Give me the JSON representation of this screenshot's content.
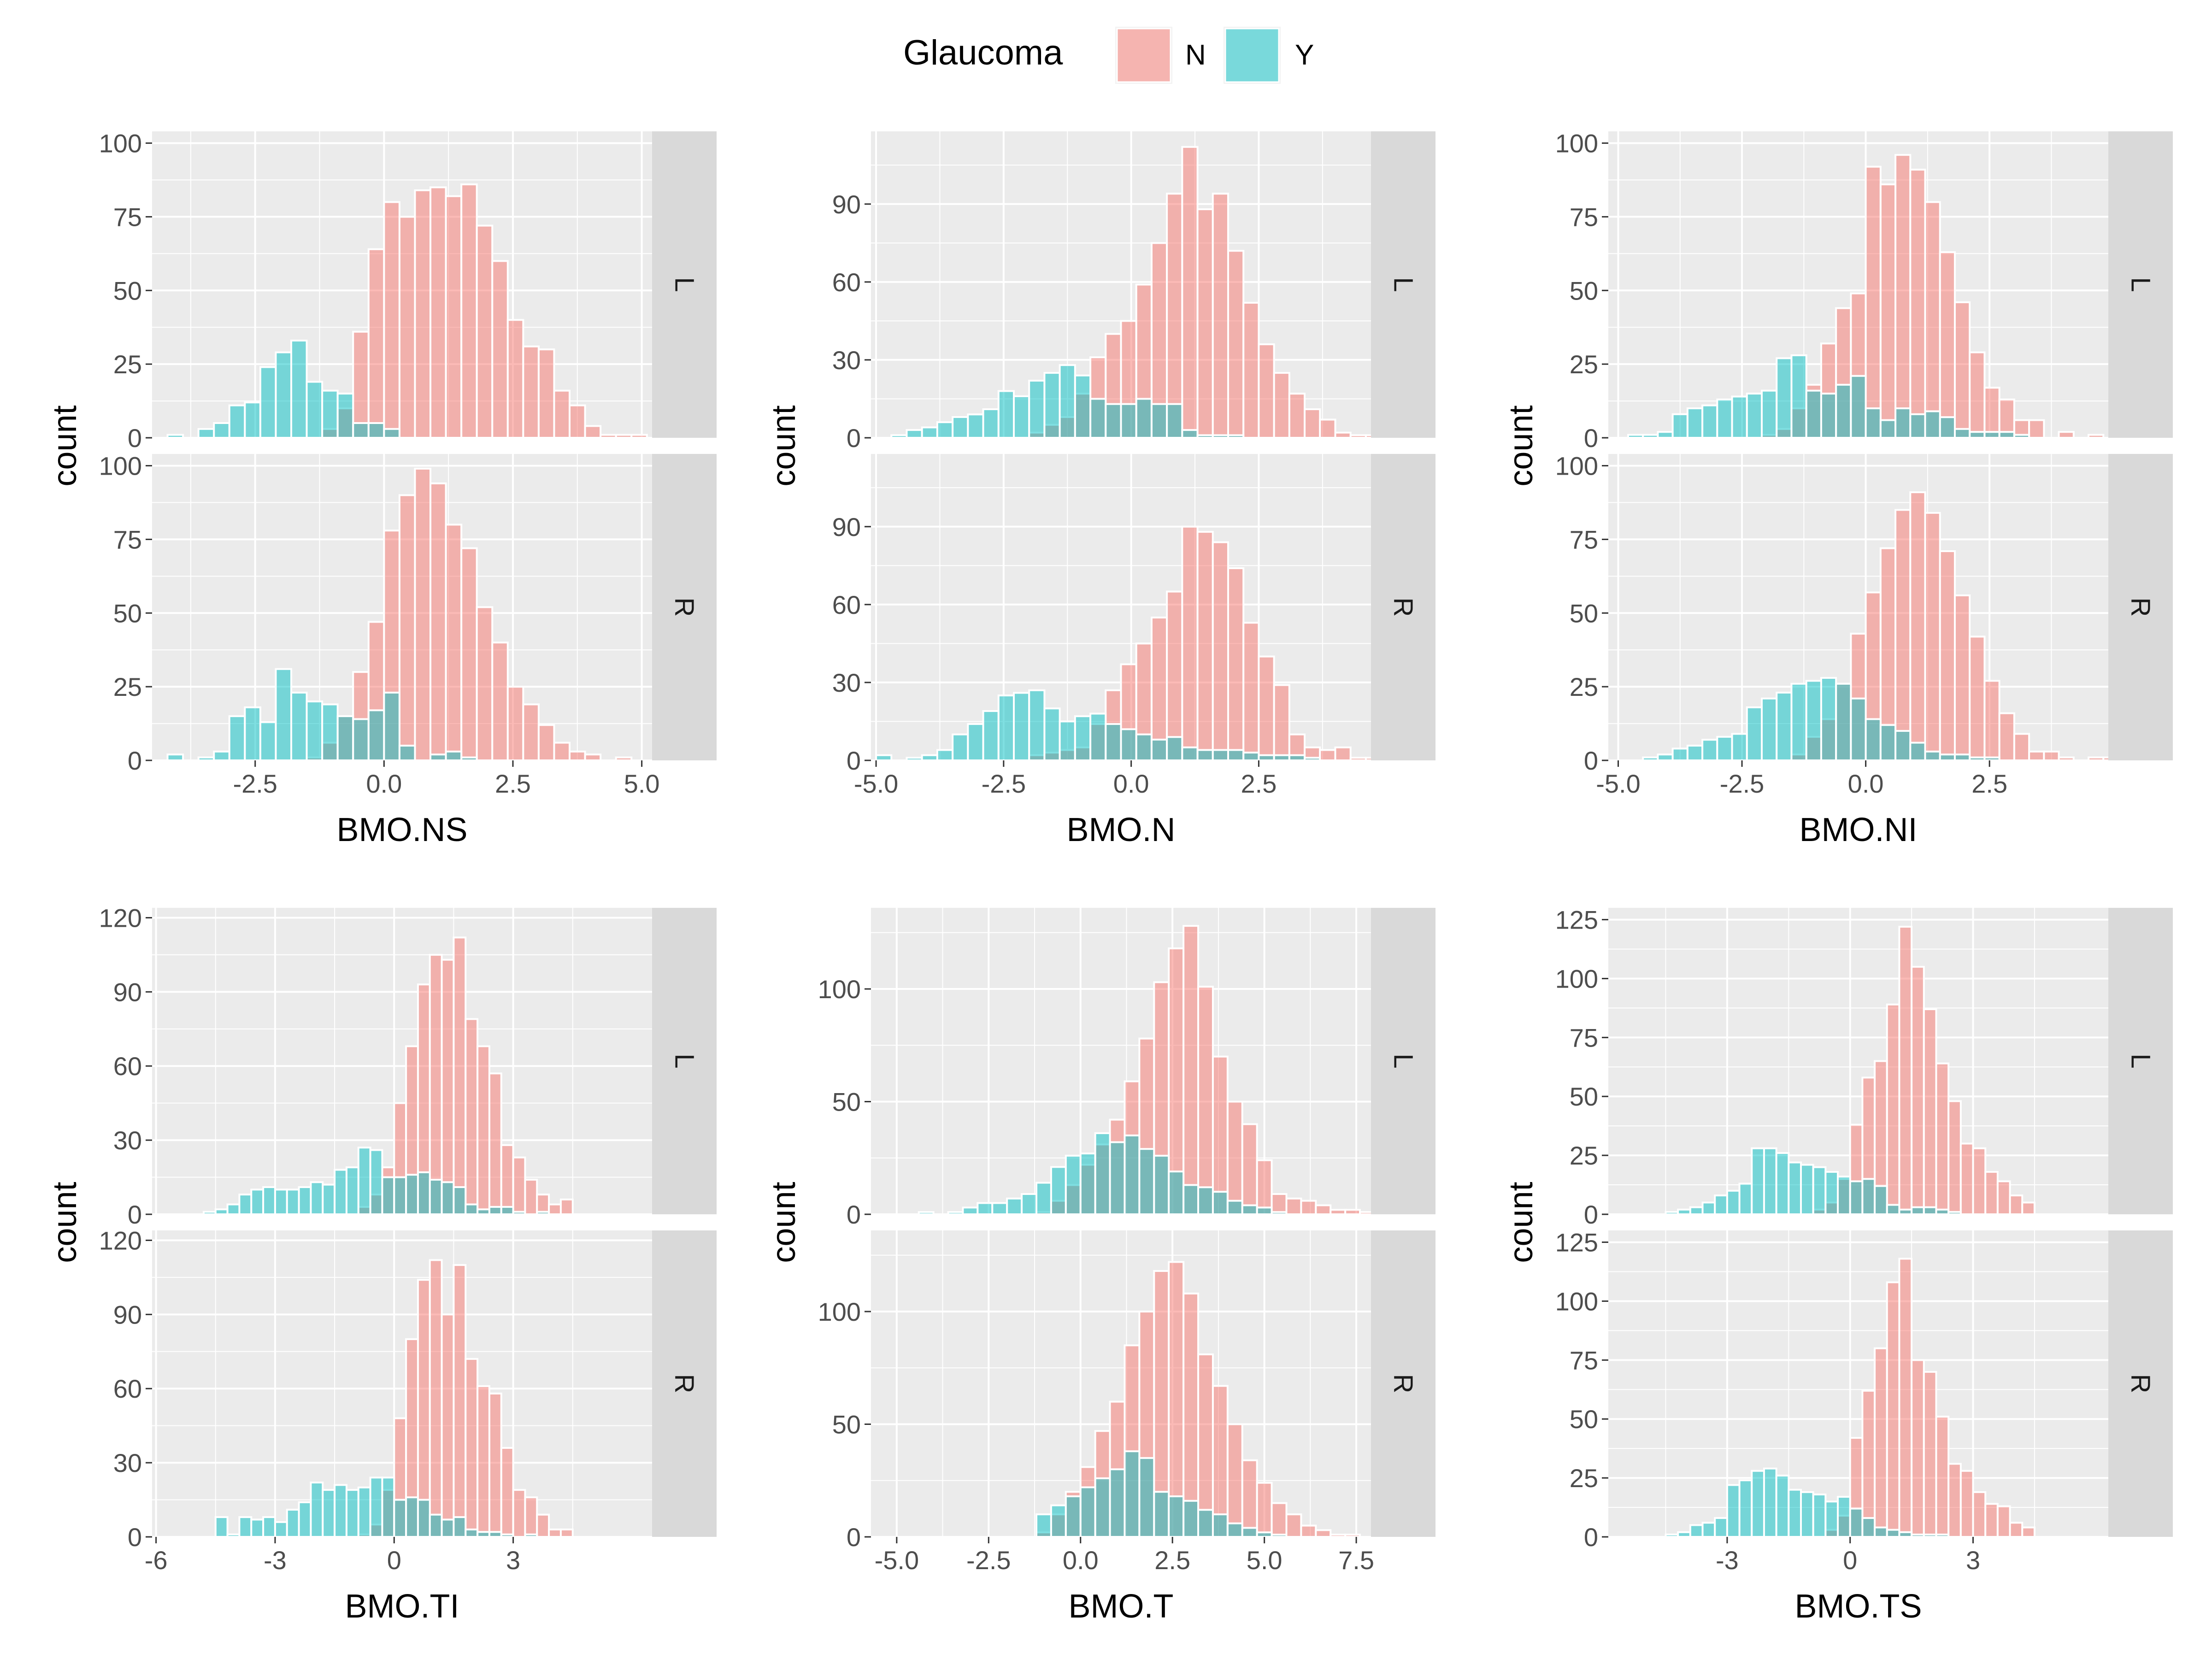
{
  "legend": {
    "title": "Glaucoma",
    "items": [
      {
        "label": "N",
        "color": "#F8766D"
      },
      {
        "label": "Y",
        "color": "#00BFC4"
      }
    ]
  },
  "chart_data": [
    {
      "type": "bar",
      "xlabel": "BMO.NS",
      "ylabel": "count",
      "xlim": [
        -4.5,
        5.2
      ],
      "xticks": [
        -2.5,
        0.0,
        2.5,
        5.0
      ],
      "xtick_labels": [
        "-2.5",
        "0.0",
        "2.5",
        "5.0"
      ],
      "ylim": [
        0,
        104
      ],
      "yticks": [
        0,
        25,
        50,
        75,
        100
      ],
      "ytick_labels": [
        "0",
        "25",
        "50",
        "75",
        "100"
      ],
      "bin_start": -4.2,
      "bin_width": 0.3,
      "panels": [
        {
          "label": "L",
          "N": [
            0,
            0,
            0,
            0,
            0,
            0,
            0,
            0,
            0,
            0,
            3,
            10,
            36,
            64,
            80,
            75,
            84,
            85,
            82,
            86,
            72,
            60,
            40,
            31,
            30,
            16,
            11,
            4,
            1,
            1,
            1,
            0,
            0
          ],
          "Y": [
            1,
            0,
            3,
            5,
            11,
            12,
            24,
            29,
            33,
            19,
            16,
            15,
            5,
            5,
            3,
            0,
            0,
            0,
            0,
            0,
            0,
            0,
            0,
            0,
            0,
            0,
            0,
            0,
            0,
            0,
            0,
            0,
            0
          ]
        },
        {
          "label": "R",
          "N": [
            0,
            0,
            0,
            0,
            0,
            0,
            0,
            0,
            0,
            1,
            6,
            15,
            30,
            47,
            78,
            90,
            99,
            94,
            80,
            72,
            52,
            40,
            25,
            19,
            12,
            6,
            3,
            2,
            0,
            1,
            0,
            0,
            0
          ],
          "Y": [
            2,
            0,
            1,
            3,
            15,
            18,
            13,
            31,
            23,
            20,
            19,
            15,
            14,
            17,
            23,
            5,
            0,
            2,
            3,
            1,
            0,
            0,
            0,
            0,
            0,
            0,
            0,
            0,
            0,
            0,
            0,
            0,
            0
          ]
        }
      ]
    },
    {
      "type": "bar",
      "xlabel": "BMO.N",
      "ylabel": "count",
      "xlim": [
        -5.1,
        4.7
      ],
      "xticks": [
        -5.0,
        -2.5,
        0.0,
        2.5
      ],
      "xtick_labels": [
        "-5.0",
        "-2.5",
        "0.0",
        "2.5"
      ],
      "ylim": [
        0,
        118
      ],
      "yticks": [
        0,
        30,
        60,
        90
      ],
      "ytick_labels": [
        "0",
        "30",
        "60",
        "90"
      ],
      "bin_start": -5.0,
      "bin_width": 0.3,
      "panels": [
        {
          "label": "L",
          "N": [
            0,
            0,
            0,
            0,
            0,
            0,
            0,
            0,
            0,
            0,
            2,
            5,
            8,
            17,
            31,
            40,
            45,
            59,
            75,
            94,
            112,
            88,
            94,
            72,
            52,
            36,
            25,
            17,
            11,
            7,
            2,
            1,
            1
          ],
          "Y": [
            0,
            1,
            3,
            4,
            6,
            8,
            9,
            11,
            18,
            16,
            22,
            25,
            28,
            24,
            15,
            13,
            13,
            15,
            13,
            13,
            3,
            1,
            1,
            1,
            0,
            0,
            0,
            0,
            0,
            0,
            0,
            0,
            0
          ]
        },
        {
          "label": "R",
          "N": [
            0,
            0,
            0,
            0,
            0,
            0,
            0,
            0,
            0,
            0,
            2,
            3,
            4,
            5,
            14,
            27,
            37,
            45,
            55,
            65,
            90,
            88,
            84,
            74,
            53,
            40,
            29,
            10,
            5,
            4,
            5,
            1,
            1
          ],
          "Y": [
            2,
            0,
            1,
            2,
            4,
            10,
            14,
            19,
            25,
            26,
            27,
            20,
            15,
            17,
            18,
            14,
            12,
            10,
            8,
            9,
            5,
            4,
            4,
            4,
            3,
            2,
            2,
            2,
            1,
            0,
            0,
            0,
            0
          ]
        }
      ]
    },
    {
      "type": "bar",
      "xlabel": "BMO.NI",
      "ylabel": "count",
      "xlim": [
        -5.2,
        4.9
      ],
      "xticks": [
        -5.0,
        -2.5,
        0.0,
        2.5
      ],
      "xtick_labels": [
        "-5.0",
        "-2.5",
        "0.0",
        "2.5"
      ],
      "ylim": [
        0,
        104
      ],
      "yticks": [
        0,
        25,
        50,
        75,
        100
      ],
      "ytick_labels": [
        "0",
        "25",
        "50",
        "75",
        "100"
      ],
      "bin_start": -4.8,
      "bin_width": 0.3,
      "panels": [
        {
          "label": "L",
          "N": [
            0,
            0,
            0,
            0,
            0,
            0,
            0,
            0,
            0,
            1,
            3,
            10,
            18,
            32,
            44,
            49,
            92,
            86,
            96,
            91,
            80,
            63,
            46,
            29,
            17,
            13,
            6,
            6,
            0,
            2,
            0,
            1,
            0
          ],
          "Y": [
            1,
            1,
            2,
            8,
            10,
            11,
            13,
            14,
            15,
            16,
            27,
            28,
            16,
            15,
            18,
            21,
            10,
            6,
            10,
            8,
            9,
            7,
            3,
            2,
            2,
            2,
            1,
            0,
            0,
            0,
            0,
            0,
            0
          ]
        },
        {
          "label": "R",
          "N": [
            0,
            0,
            0,
            0,
            0,
            0,
            0,
            0,
            0,
            0,
            0,
            2,
            8,
            14,
            26,
            43,
            57,
            72,
            85,
            91,
            84,
            71,
            56,
            42,
            27,
            16,
            9,
            3,
            3,
            1,
            0,
            1,
            1
          ],
          "Y": [
            0,
            1,
            2,
            4,
            5,
            7,
            8,
            9,
            18,
            21,
            23,
            26,
            27,
            28,
            26,
            21,
            14,
            12,
            10,
            6,
            3,
            2,
            2,
            1,
            1,
            0,
            0,
            0,
            0,
            0,
            0,
            0,
            0
          ]
        }
      ]
    },
    {
      "type": "bar",
      "xlabel": "BMO.TI",
      "ylabel": "count",
      "xlim": [
        -6.1,
        6.5
      ],
      "xticks": [
        -6,
        -3,
        0,
        3
      ],
      "xtick_labels": [
        "-6",
        "-3",
        "0",
        "3"
      ],
      "ylim": [
        0,
        124
      ],
      "yticks": [
        0,
        30,
        60,
        90,
        120
      ],
      "ytick_labels": [
        "0",
        "30",
        "60",
        "90",
        "120"
      ],
      "bin_start": -5.4,
      "bin_width": 0.3,
      "panels": [
        {
          "label": "L",
          "N": [
            0,
            0,
            0,
            0,
            0,
            0,
            0,
            0,
            0,
            0,
            0,
            0,
            0,
            0,
            0,
            3,
            8,
            19,
            45,
            68,
            93,
            105,
            103,
            112,
            79,
            68,
            57,
            28,
            23,
            14,
            8,
            4,
            6
          ],
          "Y": [
            0,
            0,
            1,
            2,
            4,
            8,
            10,
            11,
            10,
            10,
            11,
            13,
            12,
            18,
            19,
            27,
            26,
            15,
            15,
            16,
            17,
            14,
            13,
            11,
            4,
            2,
            3,
            3,
            1,
            0,
            1,
            0,
            0
          ]
        },
        {
          "label": "R",
          "N": [
            0,
            0,
            0,
            0,
            0,
            0,
            0,
            0,
            0,
            0,
            0,
            0,
            0,
            0,
            0,
            1,
            5,
            19,
            48,
            80,
            104,
            112,
            90,
            110,
            72,
            61,
            58,
            36,
            19,
            16,
            9,
            3,
            3
          ],
          "Y": [
            0,
            0,
            0,
            8,
            1,
            8,
            7,
            8,
            6,
            11,
            14,
            22,
            19,
            21,
            19,
            20,
            24,
            24,
            15,
            16,
            15,
            9,
            7,
            8,
            3,
            2,
            2,
            1,
            0,
            1,
            0,
            0,
            0
          ]
        }
      ]
    },
    {
      "type": "bar",
      "xlabel": "BMO.T",
      "ylabel": "count",
      "xlim": [
        -5.7,
        7.9
      ],
      "xticks": [
        -5.0,
        -2.5,
        0.0,
        2.5,
        5.0,
        7.5
      ],
      "xtick_labels": [
        "-5.0",
        "-2.5",
        "0.0",
        "2.5",
        "5.0",
        "7.5"
      ],
      "ylim": [
        0,
        136
      ],
      "yticks": [
        0,
        50,
        100
      ],
      "ytick_labels": [
        "0",
        "50",
        "100"
      ],
      "bin_start": -4.8,
      "bin_width": 0.4,
      "panels": [
        {
          "label": "L",
          "N": [
            0,
            0,
            0,
            0,
            0,
            0,
            0,
            0,
            0,
            1,
            6,
            13,
            22,
            31,
            42,
            59,
            78,
            103,
            118,
            128,
            101,
            70,
            50,
            40,
            24,
            9,
            7,
            6,
            4,
            2,
            2,
            1,
            1
          ],
          "Y": [
            0,
            1,
            0,
            1,
            3,
            5,
            5,
            7,
            9,
            14,
            21,
            26,
            27,
            36,
            32,
            35,
            29,
            26,
            19,
            13,
            12,
            10,
            6,
            4,
            3,
            1,
            0,
            0,
            0,
            0,
            0,
            0,
            0
          ]
        },
        {
          "label": "R",
          "N": [
            0,
            0,
            0,
            0,
            0,
            0,
            0,
            0,
            0,
            2,
            10,
            20,
            31,
            47,
            60,
            85,
            100,
            118,
            122,
            108,
            81,
            67,
            50,
            34,
            24,
            15,
            10,
            5,
            3,
            1,
            1,
            0,
            0
          ],
          "Y": [
            0,
            0,
            0,
            0,
            0,
            0,
            0,
            0,
            0,
            10,
            14,
            18,
            22,
            26,
            30,
            38,
            35,
            20,
            18,
            16,
            12,
            10,
            6,
            4,
            2,
            1,
            0,
            0,
            0,
            0,
            0,
            0,
            0
          ]
        }
      ]
    },
    {
      "type": "bar",
      "xlabel": "BMO.TS",
      "ylabel": "count",
      "xlim": [
        -5.9,
        6.3
      ],
      "xticks": [
        -3,
        0,
        3
      ],
      "xtick_labels": [
        "-3",
        "0",
        "3"
      ],
      "ylim": [
        0,
        130
      ],
      "yticks": [
        0,
        25,
        50,
        75,
        100,
        125
      ],
      "ytick_labels": [
        "0",
        "25",
        "50",
        "75",
        "100",
        "125"
      ],
      "bin_start": -5.4,
      "bin_width": 0.3,
      "panels": [
        {
          "label": "L",
          "N": [
            0,
            0,
            0,
            0,
            0,
            0,
            0,
            0,
            0,
            0,
            0,
            0,
            0,
            0,
            0,
            2,
            5,
            15,
            38,
            58,
            65,
            89,
            122,
            105,
            87,
            64,
            48,
            30,
            28,
            18,
            14,
            8,
            5
          ],
          "Y": [
            0,
            0,
            0,
            1,
            2,
            3,
            5,
            8,
            10,
            13,
            28,
            28,
            26,
            22,
            21,
            20,
            18,
            16,
            14,
            15,
            12,
            4,
            2,
            3,
            3,
            2,
            1,
            0,
            0,
            0,
            0,
            0,
            0
          ]
        },
        {
          "label": "R",
          "N": [
            0,
            0,
            0,
            0,
            0,
            0,
            0,
            0,
            0,
            0,
            0,
            0,
            0,
            0,
            0,
            0,
            3,
            9,
            42,
            62,
            80,
            108,
            118,
            75,
            70,
            51,
            31,
            28,
            19,
            14,
            13,
            6,
            4
          ],
          "Y": [
            0,
            0,
            0,
            1,
            2,
            5,
            6,
            8,
            22,
            24,
            28,
            29,
            26,
            20,
            19,
            18,
            15,
            17,
            12,
            8,
            4,
            3,
            2,
            1,
            1,
            1,
            0,
            0,
            0,
            0,
            0,
            0,
            0
          ]
        }
      ]
    }
  ]
}
